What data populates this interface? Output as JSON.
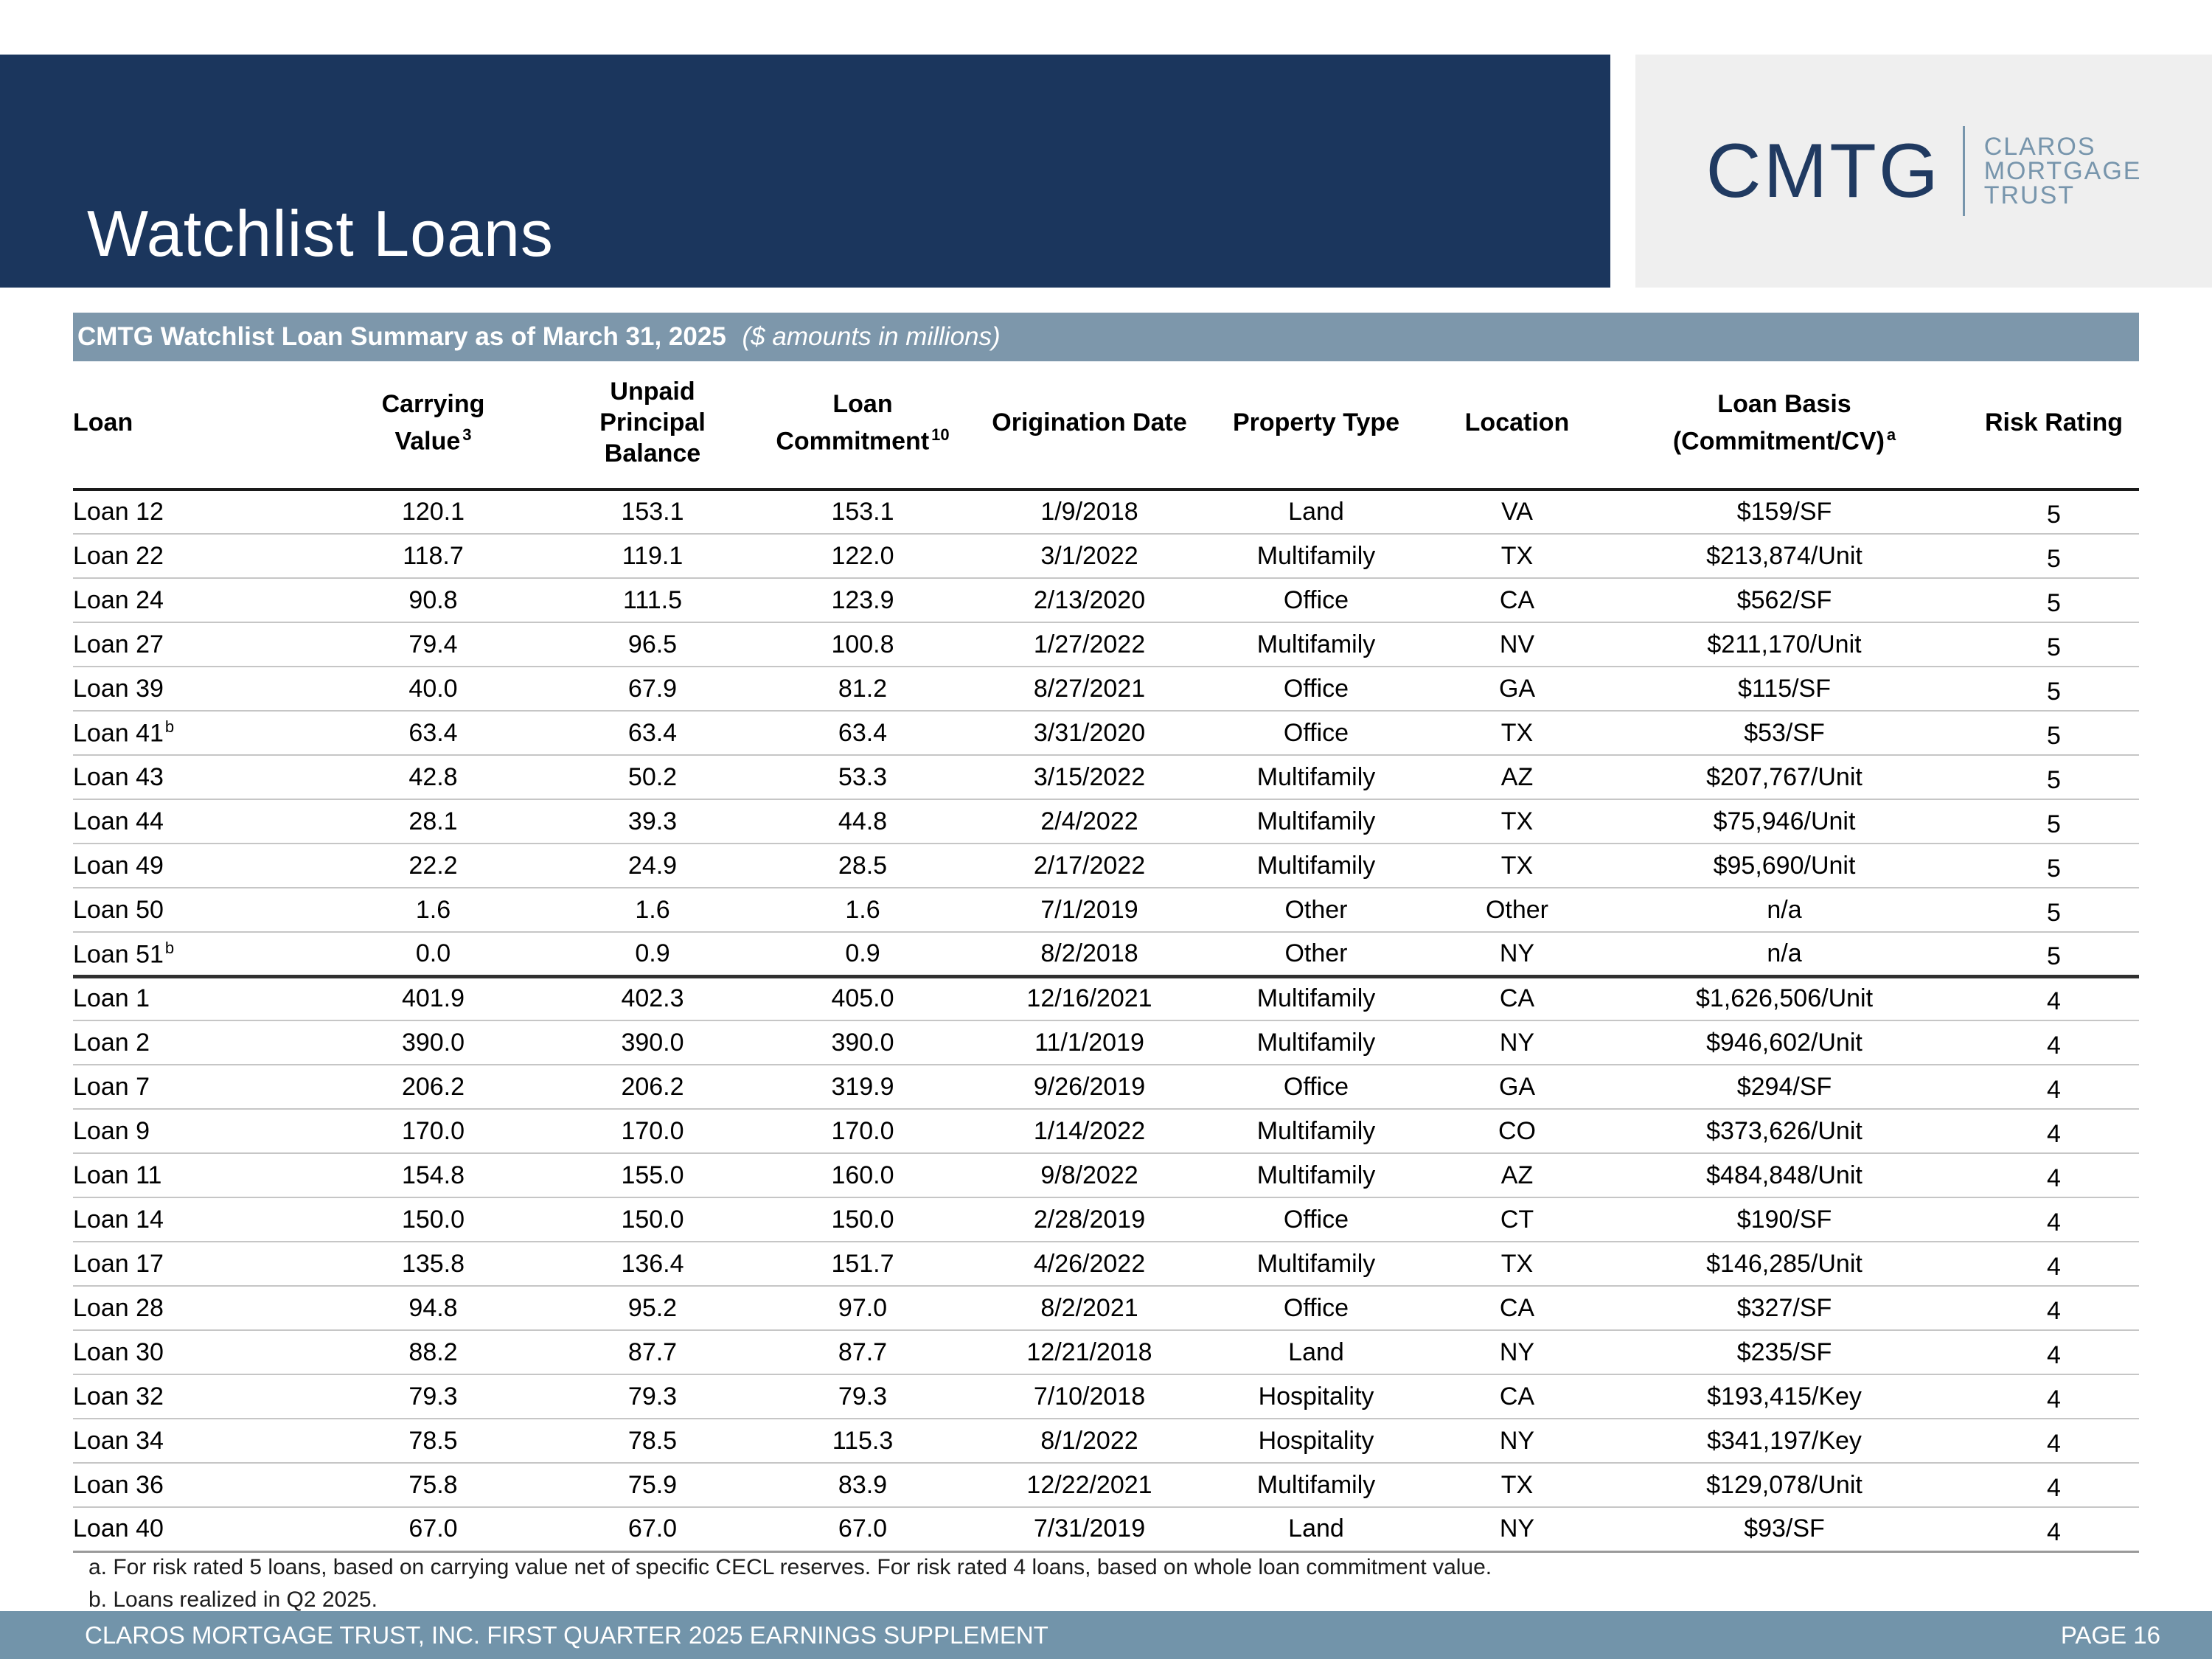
{
  "page": {
    "title": "Watchlist Loans"
  },
  "logo": {
    "acronym": "CMTG",
    "lines": [
      "CLAROS",
      "MORTGAGE",
      "TRUST"
    ]
  },
  "colors": {
    "navy": "#1b365d",
    "summary_bar": "#7d97ab",
    "footer_bar": "#7294aa",
    "logo_background": "#efefef",
    "logo_steel_blue": "#7795ac"
  },
  "summary_bar": {
    "title_bold": "CMTG Watchlist Loan Summary as of March 31, 2025",
    "title_italic": "($ amounts in millions)"
  },
  "table": {
    "columns": [
      {
        "key": "loan",
        "lines": [
          {
            "t": "Loan"
          }
        ]
      },
      {
        "key": "carrying",
        "lines": [
          {
            "t": "Carrying"
          },
          {
            "t": "Value",
            "sup": "3"
          }
        ]
      },
      {
        "key": "unpaid",
        "lines": [
          {
            "t": "Unpaid Principal"
          },
          {
            "t": "Balance"
          }
        ]
      },
      {
        "key": "commitment",
        "lines": [
          {
            "t": "Loan"
          },
          {
            "t": "Commitment",
            "sup": "10"
          }
        ]
      },
      {
        "key": "date",
        "lines": [
          {
            "t": "Origination Date"
          }
        ]
      },
      {
        "key": "type",
        "lines": [
          {
            "t": "Property Type"
          }
        ]
      },
      {
        "key": "location",
        "lines": [
          {
            "t": "Location"
          }
        ]
      },
      {
        "key": "basis",
        "lines": [
          {
            "t": "Loan Basis"
          },
          {
            "t": "(Commitment/CV)",
            "sup": "a"
          }
        ]
      },
      {
        "key": "risk",
        "lines": [
          {
            "t": "Risk Rating"
          }
        ]
      }
    ],
    "group_start_index": 11,
    "rows": [
      {
        "loan": "Loan 12",
        "sup": "",
        "carrying": "120.1",
        "unpaid": "153.1",
        "commitment": "153.1",
        "date": "1/9/2018",
        "type": "Land",
        "location": "VA",
        "basis": "$159/SF",
        "risk": "5"
      },
      {
        "loan": "Loan 22",
        "sup": "",
        "carrying": "118.7",
        "unpaid": "119.1",
        "commitment": "122.0",
        "date": "3/1/2022",
        "type": "Multifamily",
        "location": "TX",
        "basis": "$213,874/Unit",
        "risk": "5"
      },
      {
        "loan": "Loan 24",
        "sup": "",
        "carrying": "90.8",
        "unpaid": "111.5",
        "commitment": "123.9",
        "date": "2/13/2020",
        "type": "Office",
        "location": "CA",
        "basis": "$562/SF",
        "risk": "5"
      },
      {
        "loan": "Loan 27",
        "sup": "",
        "carrying": "79.4",
        "unpaid": "96.5",
        "commitment": "100.8",
        "date": "1/27/2022",
        "type": "Multifamily",
        "location": "NV",
        "basis": "$211,170/Unit",
        "risk": "5"
      },
      {
        "loan": "Loan 39",
        "sup": "",
        "carrying": "40.0",
        "unpaid": "67.9",
        "commitment": "81.2",
        "date": "8/27/2021",
        "type": "Office",
        "location": "GA",
        "basis": "$115/SF",
        "risk": "5"
      },
      {
        "loan": "Loan 41",
        "sup": "b",
        "carrying": "63.4",
        "unpaid": "63.4",
        "commitment": "63.4",
        "date": "3/31/2020",
        "type": "Office",
        "location": "TX",
        "basis": "$53/SF",
        "risk": "5"
      },
      {
        "loan": "Loan 43",
        "sup": "",
        "carrying": "42.8",
        "unpaid": "50.2",
        "commitment": "53.3",
        "date": "3/15/2022",
        "type": "Multifamily",
        "location": "AZ",
        "basis": "$207,767/Unit",
        "risk": "5"
      },
      {
        "loan": "Loan 44",
        "sup": "",
        "carrying": "28.1",
        "unpaid": "39.3",
        "commitment": "44.8",
        "date": "2/4/2022",
        "type": "Multifamily",
        "location": "TX",
        "basis": "$75,946/Unit",
        "risk": "5"
      },
      {
        "loan": "Loan 49",
        "sup": "",
        "carrying": "22.2",
        "unpaid": "24.9",
        "commitment": "28.5",
        "date": "2/17/2022",
        "type": "Multifamily",
        "location": "TX",
        "basis": "$95,690/Unit",
        "risk": "5"
      },
      {
        "loan": "Loan 50",
        "sup": "",
        "carrying": "1.6",
        "unpaid": "1.6",
        "commitment": "1.6",
        "date": "7/1/2019",
        "type": "Other",
        "location": "Other",
        "basis": "n/a",
        "risk": "5"
      },
      {
        "loan": "Loan 51",
        "sup": "b",
        "carrying": "0.0",
        "unpaid": "0.9",
        "commitment": "0.9",
        "date": "8/2/2018",
        "type": "Other",
        "location": "NY",
        "basis": "n/a",
        "risk": "5"
      },
      {
        "loan": "Loan 1",
        "sup": "",
        "carrying": "401.9",
        "unpaid": "402.3",
        "commitment": "405.0",
        "date": "12/16/2021",
        "type": "Multifamily",
        "location": "CA",
        "basis": "$1,626,506/Unit",
        "risk": "4"
      },
      {
        "loan": "Loan 2",
        "sup": "",
        "carrying": "390.0",
        "unpaid": "390.0",
        "commitment": "390.0",
        "date": "11/1/2019",
        "type": "Multifamily",
        "location": "NY",
        "basis": "$946,602/Unit",
        "risk": "4"
      },
      {
        "loan": "Loan 7",
        "sup": "",
        "carrying": "206.2",
        "unpaid": "206.2",
        "commitment": "319.9",
        "date": "9/26/2019",
        "type": "Office",
        "location": "GA",
        "basis": "$294/SF",
        "risk": "4"
      },
      {
        "loan": "Loan 9",
        "sup": "",
        "carrying": "170.0",
        "unpaid": "170.0",
        "commitment": "170.0",
        "date": "1/14/2022",
        "type": "Multifamily",
        "location": "CO",
        "basis": "$373,626/Unit",
        "risk": "4"
      },
      {
        "loan": "Loan 11",
        "sup": "",
        "carrying": "154.8",
        "unpaid": "155.0",
        "commitment": "160.0",
        "date": "9/8/2022",
        "type": "Multifamily",
        "location": "AZ",
        "basis": "$484,848/Unit",
        "risk": "4"
      },
      {
        "loan": "Loan 14",
        "sup": "",
        "carrying": "150.0",
        "unpaid": "150.0",
        "commitment": "150.0",
        "date": "2/28/2019",
        "type": "Office",
        "location": "CT",
        "basis": "$190/SF",
        "risk": "4"
      },
      {
        "loan": "Loan 17",
        "sup": "",
        "carrying": "135.8",
        "unpaid": "136.4",
        "commitment": "151.7",
        "date": "4/26/2022",
        "type": "Multifamily",
        "location": "TX",
        "basis": "$146,285/Unit",
        "risk": "4"
      },
      {
        "loan": "Loan 28",
        "sup": "",
        "carrying": "94.8",
        "unpaid": "95.2",
        "commitment": "97.0",
        "date": "8/2/2021",
        "type": "Office",
        "location": "CA",
        "basis": "$327/SF",
        "risk": "4"
      },
      {
        "loan": "Loan 30",
        "sup": "",
        "carrying": "88.2",
        "unpaid": "87.7",
        "commitment": "87.7",
        "date": "12/21/2018",
        "type": "Land",
        "location": "NY",
        "basis": "$235/SF",
        "risk": "4"
      },
      {
        "loan": "Loan 32",
        "sup": "",
        "carrying": "79.3",
        "unpaid": "79.3",
        "commitment": "79.3",
        "date": "7/10/2018",
        "type": "Hospitality",
        "location": "CA",
        "basis": "$193,415/Key",
        "risk": "4"
      },
      {
        "loan": "Loan 34",
        "sup": "",
        "carrying": "78.5",
        "unpaid": "78.5",
        "commitment": "115.3",
        "date": "8/1/2022",
        "type": "Hospitality",
        "location": "NY",
        "basis": "$341,197/Key",
        "risk": "4"
      },
      {
        "loan": "Loan 36",
        "sup": "",
        "carrying": "75.8",
        "unpaid": "75.9",
        "commitment": "83.9",
        "date": "12/22/2021",
        "type": "Multifamily",
        "location": "TX",
        "basis": "$129,078/Unit",
        "risk": "4"
      },
      {
        "loan": "Loan 40",
        "sup": "",
        "carrying": "67.0",
        "unpaid": "67.0",
        "commitment": "67.0",
        "date": "7/31/2019",
        "type": "Land",
        "location": "NY",
        "basis": "$93/SF",
        "risk": "4"
      }
    ]
  },
  "footnotes": [
    "a. For risk rated 5 loans, based on carrying value net of specific CECL reserves. For risk rated 4 loans, based on whole loan commitment value.",
    "b. Loans realized in Q2 2025."
  ],
  "footer": {
    "left": "CLAROS MORTGAGE TRUST, INC. FIRST QUARTER 2025 EARNINGS SUPPLEMENT",
    "right": "PAGE 16"
  }
}
